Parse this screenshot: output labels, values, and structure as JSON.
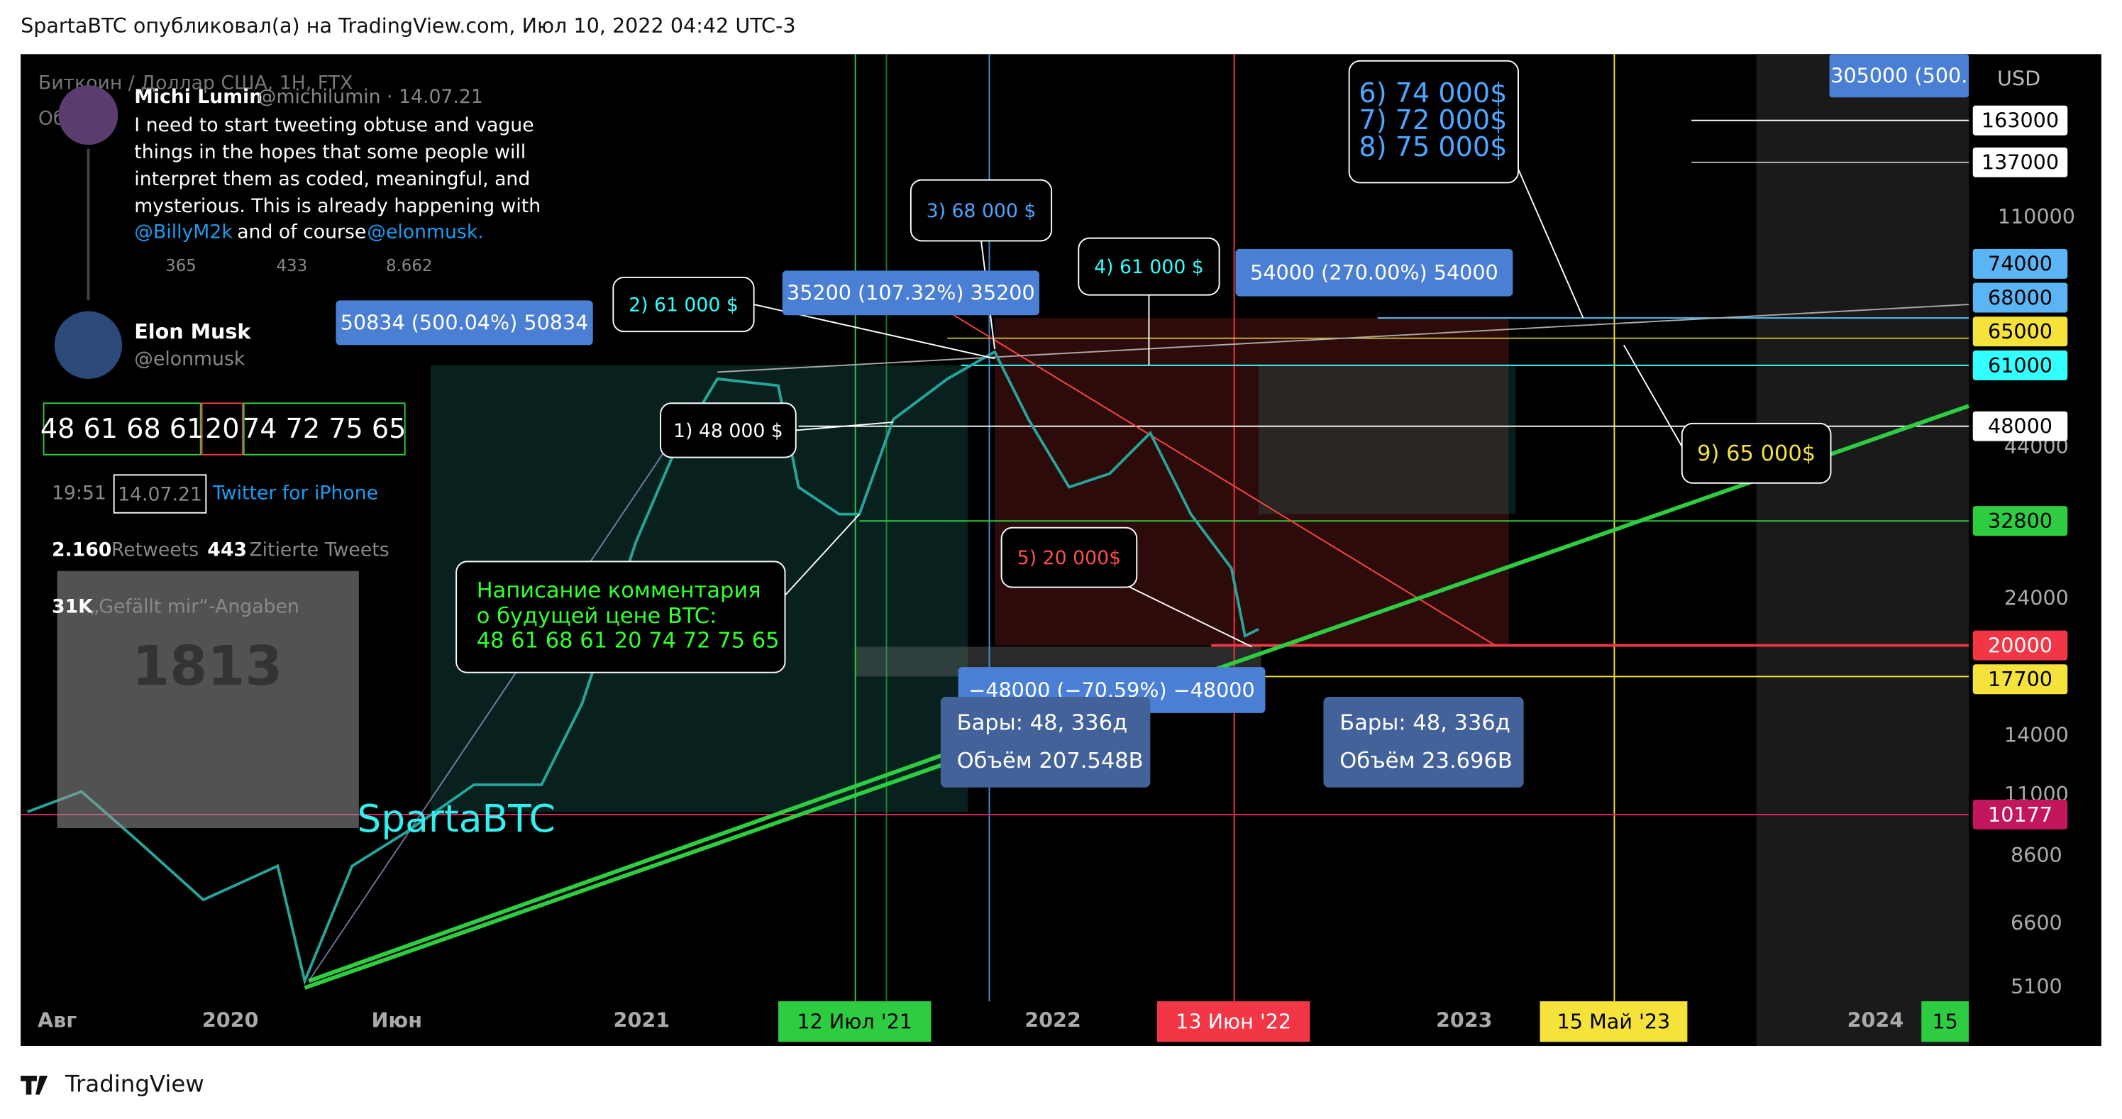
{
  "header": {
    "published": "SpartaBTC опубликовал(а) на TradingView.com, Июл 10, 2022 04:42 UTC-3"
  },
  "chart": {
    "symbol": "Биткоин / Доллар США, 1Н, FTX",
    "volume": "Объём",
    "currency": "USD",
    "watermark": "SpartaBTC",
    "price_axis": [
      "110000",
      "44000",
      "24000",
      "14000",
      "11000",
      "8600",
      "6600",
      "5100"
    ],
    "price_tags": [
      "305000 (500.",
      "163000",
      "137000",
      "74000",
      "68000",
      "65000",
      "61000",
      "48000",
      "32800",
      "20000",
      "17700",
      "10177"
    ],
    "time_axis": [
      "Авг",
      "2020",
      "Июн",
      "2021",
      "2022",
      "2023",
      "2024"
    ],
    "time_tags": [
      "12 Июл '21",
      "13 Июн '22",
      "15 Май '23",
      "15"
    ],
    "callouts": [
      "1) 48 000 $",
      "2) 61 000 $",
      "3) 68 000 $",
      "4) 61 000 $",
      "5) 20 000$",
      [
        "6) 74 000$",
        "7) 72 000$",
        "8) 75 000$"
      ],
      "9) 65 000$"
    ],
    "comment": [
      "Написание комментария",
      "о будущей цене BTC:",
      "48 61 68 61 20 74 72 75 65"
    ],
    "measures": [
      "50834 (500.04%) 50834",
      "35200 (107.32%) 35200",
      "54000 (270.00%) 54000",
      "−48000 (−70.59%) −48000"
    ],
    "stats": [
      [
        "Бары: 48, 336д",
        "Объём 207.548B"
      ],
      [
        "Бары: 48, 336д",
        "Объём 23.696B"
      ]
    ]
  },
  "tweet": {
    "quoted": {
      "name": "Michi Lumin",
      "handle": "@michilumin · 14.07.21",
      "lines": [
        "I need to start tweeting obtuse and vague",
        "things in the hopes that some people will",
        "interpret them as coded, meaningful, and",
        "mysterious. This is already happening with"
      ],
      "mention1": "@BillyM2k",
      "between": "and of course",
      "mention2": "@elonmusk.",
      "replies": "365",
      "retweets": "433",
      "likes": "8.662"
    },
    "name": "Elon Musk",
    "handle": "@elonmusk",
    "code": [
      "48 61 68 61",
      "20",
      "74 72 75 65"
    ],
    "time": "19:51 ·",
    "date": "14.07.21",
    "source": "Twitter for iPhone",
    "retweets": "2.160",
    "retweets_label": "Retweets",
    "quotes": "443",
    "quotes_label": "Zitierte Tweets",
    "likes": "31K",
    "likes_label": "„Gefällt mir“-Angaben",
    "image": "1813"
  },
  "footer": {
    "brand": "TradingView"
  }
}
